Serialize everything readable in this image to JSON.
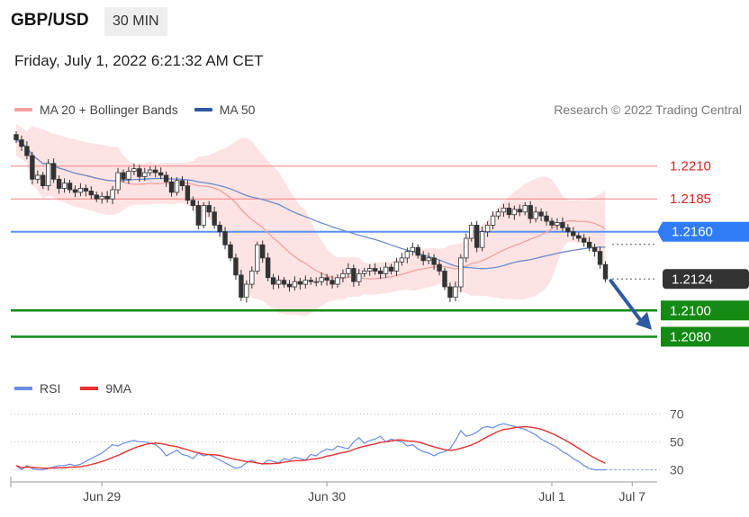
{
  "header": {
    "symbol": "GBP/USD",
    "timeframe": "30 MIN"
  },
  "datetime": "Friday, July 1, 2022 6:21:32 AM CET",
  "legend": {
    "ma20_label": "MA 20 + Bollinger Bands",
    "ma50_label": "MA 50",
    "credit": "Research © 2022 Trading Central"
  },
  "rsi_legend": {
    "rsi_label": "RSI",
    "ma_label": "9MA"
  },
  "colors": {
    "band_fill": "#fde0e0",
    "ma20": "#f0a0a0",
    "ma50": "#6a8cc8",
    "resistance": "#f08080",
    "pivot": "#5b8ff9",
    "support": "#138a13",
    "up": "#ffffff",
    "down": "#333333",
    "arrow": "#2d5aa0",
    "rsi": "#6a8ce8",
    "rsi_ma": "#e83030"
  },
  "chart_data": [
    {
      "type": "candlestick",
      "title": "GBP/USD 30 MIN",
      "ylim": [
        1.2068,
        1.2242
      ],
      "levels": [
        {
          "label": "1.2210",
          "value": 1.221,
          "kind": "resistance"
        },
        {
          "label": "1.2185",
          "value": 1.2185,
          "kind": "resistance"
        },
        {
          "label": "1.2160",
          "value": 1.216,
          "kind": "pivot"
        },
        {
          "label": "1.2124",
          "value": 1.2124,
          "kind": "last"
        },
        {
          "label": "1.2100",
          "value": 1.21,
          "kind": "support"
        },
        {
          "label": "1.2080",
          "value": 1.208,
          "kind": "support"
        }
      ],
      "x_ticks": [
        {
          "label": "Jun 29",
          "index": 16
        },
        {
          "label": "Jun 30",
          "index": 58
        },
        {
          "label": "Jul 1",
          "index": 100
        },
        {
          "label": "Jul 7",
          "index": 115
        }
      ],
      "close": [
        1.223,
        1.2225,
        1.2218,
        1.22,
        1.2203,
        1.2195,
        1.2212,
        1.22,
        1.2193,
        1.2197,
        1.2192,
        1.219,
        1.2193,
        1.2191,
        1.2188,
        1.2185,
        1.2187,
        1.2185,
        1.2192,
        1.2205,
        1.22,
        1.2206,
        1.2208,
        1.2202,
        1.2205,
        1.2207,
        1.2205,
        1.2203,
        1.2198,
        1.219,
        1.2199,
        1.2195,
        1.2184,
        1.218,
        1.2165,
        1.218,
        1.2175,
        1.2165,
        1.216,
        1.215,
        1.214,
        1.2127,
        1.211,
        1.212,
        1.213,
        1.215,
        1.214,
        1.2125,
        1.212,
        1.2123,
        1.212,
        1.2118,
        1.2122,
        1.212,
        1.2123,
        1.2122,
        1.2122,
        1.2125,
        1.2123,
        1.212,
        1.2125,
        1.2128,
        1.2132,
        1.2122,
        1.2128,
        1.213,
        1.2132,
        1.213,
        1.2128,
        1.2133,
        1.213,
        1.2137,
        1.214,
        1.2145,
        1.2148,
        1.2142,
        1.2138,
        1.214,
        1.2135,
        1.213,
        1.2118,
        1.211,
        1.2118,
        1.214,
        1.2155,
        1.2165,
        1.2148,
        1.216,
        1.2165,
        1.2172,
        1.2175,
        1.2178,
        1.2173,
        1.2177,
        1.2175,
        1.218,
        1.217,
        1.2175,
        1.2172,
        1.2168,
        1.2165,
        1.2167,
        1.2163,
        1.216,
        1.2157,
        1.2155,
        1.2152,
        1.2148,
        1.2145,
        1.2135,
        1.2124
      ],
      "rsi": [
        33,
        30,
        33,
        31,
        30,
        30,
        31,
        32,
        33,
        33,
        34,
        33,
        34,
        36,
        38,
        40,
        42,
        45,
        48,
        47,
        49,
        50,
        51,
        50,
        50,
        49,
        48,
        45,
        40,
        42,
        44,
        41,
        40,
        38,
        42,
        40,
        41,
        39,
        37,
        35,
        33,
        31,
        32,
        35,
        37,
        35,
        34,
        37,
        36,
        35,
        38,
        37,
        39,
        38,
        37,
        41,
        40,
        43,
        45,
        44,
        47,
        46,
        45,
        50,
        53,
        49,
        51,
        52,
        54,
        50,
        52,
        51,
        50,
        47,
        48,
        45,
        43,
        42,
        40,
        42,
        43,
        45,
        51,
        58,
        54,
        55,
        57,
        60,
        61,
        60,
        62,
        63,
        62,
        61,
        60,
        59,
        57,
        55,
        52,
        50,
        48,
        46,
        43,
        41,
        38,
        36,
        33,
        31,
        30,
        30,
        30
      ],
      "rsi_ticks": [
        70,
        50,
        30
      ]
    }
  ]
}
